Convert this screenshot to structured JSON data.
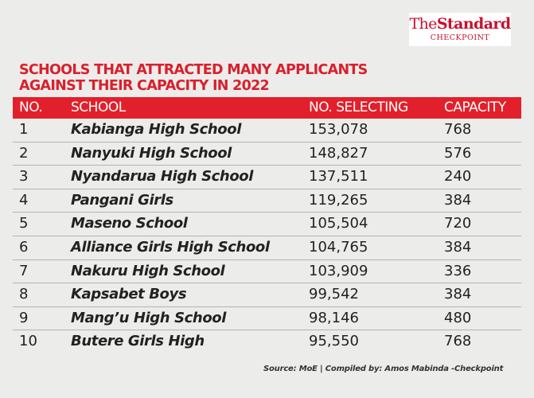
{
  "logo": {
    "name": "The Standard",
    "prefix": "The",
    "brand": "Standard",
    "sub": "CHECKPOINT",
    "color": "#c8102e"
  },
  "title": {
    "line1": "SCHOOLS THAT ATTRACTED MANY APPLICANTS",
    "line2": "AGAINST THEIR CAPACITY IN 2022"
  },
  "colors": {
    "accent": "#e2202b",
    "title": "#d9202c",
    "background": "#ececea"
  },
  "table": {
    "headers": {
      "no": "NO.",
      "school": "SCHOOL",
      "selecting": "NO. SELECTING",
      "capacity": "CAPACITY"
    },
    "rows": [
      {
        "no": "1",
        "school": "Kabianga High School",
        "selecting": "153,078",
        "capacity": "768"
      },
      {
        "no": "2",
        "school": "Nanyuki High School",
        "selecting": "148,827",
        "capacity": "576"
      },
      {
        "no": "3",
        "school": "Nyandarua High School",
        "selecting": "137,511",
        "capacity": "240"
      },
      {
        "no": "4",
        "school": "Pangani Girls",
        "selecting": "119,265",
        "capacity": "384"
      },
      {
        "no": "5",
        "school": "Maseno School",
        "selecting": "105,504",
        "capacity": "720"
      },
      {
        "no": "6",
        "school": "Alliance Girls High School",
        "selecting": "104,765",
        "capacity": "384"
      },
      {
        "no": "7",
        "school": "Nakuru High School",
        "selecting": "103,909",
        "capacity": "336"
      },
      {
        "no": "8",
        "school": "Kapsabet Boys",
        "selecting": "99,542",
        "capacity": "384"
      },
      {
        "no": "9",
        "school": "Mang’u High School",
        "selecting": "98,146",
        "capacity": "480"
      },
      {
        "no": "10",
        "school": "Butere Girls High",
        "selecting": "95,550",
        "capacity": "768"
      }
    ]
  },
  "source": "Source: MoE | Compiled by: Amos Mabinda -Checkpoint"
}
